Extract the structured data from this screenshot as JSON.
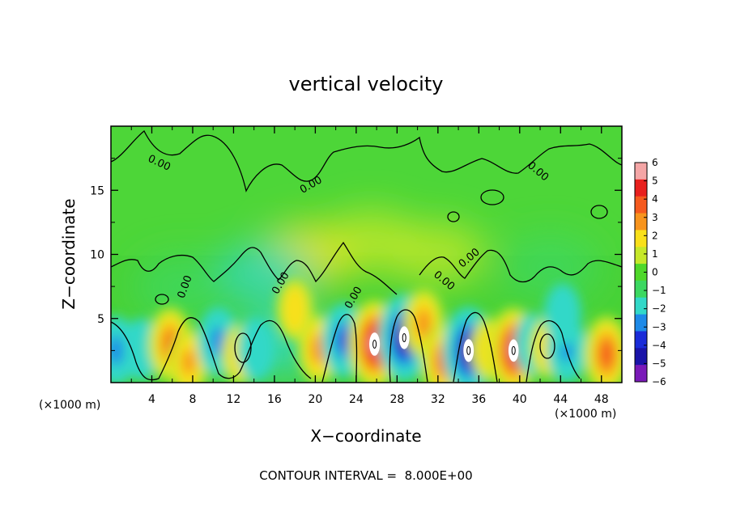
{
  "chart_data": {
    "type": "heatmap",
    "title": "vertical velocity",
    "xlabel": "X−coordinate",
    "ylabel": "Z−coordinate",
    "x_unit_left": "(×1000 m)",
    "x_unit_right": "(×1000 m)",
    "xlim": [
      0,
      50
    ],
    "ylim": [
      0,
      20
    ],
    "x_ticks": [
      4,
      8,
      12,
      16,
      20,
      24,
      28,
      32,
      36,
      40,
      44,
      48
    ],
    "y_ticks": [
      5,
      10,
      15
    ],
    "contour_label": "0.00",
    "colorbar": {
      "range": [
        -6,
        6
      ],
      "ticks": [
        "6",
        "5",
        "4",
        "3",
        "2",
        "1",
        "0",
        "−1",
        "−2",
        "−3",
        "−4",
        "−5",
        "−6"
      ],
      "colors": [
        "#f4a6a6",
        "#e8201e",
        "#f55a1e",
        "#f7941d",
        "#f9e01a",
        "#c6e82a",
        "#4fd82a",
        "#3cd861",
        "#32d8c8",
        "#1d8ae8",
        "#1a2cd8",
        "#1a14a8",
        "#7a1ab8"
      ]
    },
    "footer": "CONTOUR INTERVAL =  8.000E+00",
    "features": [
      {
        "x": 0.5,
        "z": 2.5,
        "w": -3.5
      },
      {
        "x": 3.0,
        "z": 2.6,
        "w": -2.5
      },
      {
        "x": 5.8,
        "z": 3.0,
        "w": 4.2
      },
      {
        "x": 7.6,
        "z": 1.6,
        "w": 3.2
      },
      {
        "x": 10.5,
        "z": 3.2,
        "w": -3.5
      },
      {
        "x": 12.6,
        "z": 2.2,
        "w": 2.2
      },
      {
        "x": 14.2,
        "z": 2.6,
        "w": -2.5
      },
      {
        "x": 16.5,
        "z": 3.0,
        "w": -1.5
      },
      {
        "x": 18.0,
        "z": 5.7,
        "w": 2.5
      },
      {
        "x": 20.3,
        "z": 2.6,
        "w": 3.5
      },
      {
        "x": 22.8,
        "z": 3.3,
        "w": -4.2
      },
      {
        "x": 25.8,
        "z": 3.0,
        "w": 6.4
      },
      {
        "x": 28.7,
        "z": 3.5,
        "w": -6.2
      },
      {
        "x": 30.6,
        "z": 4.6,
        "w": 3.5
      },
      {
        "x": 32.5,
        "z": 1.7,
        "w": 4.2
      },
      {
        "x": 35.0,
        "z": 2.5,
        "w": -6.2
      },
      {
        "x": 37.0,
        "z": 2.6,
        "w": 2.6
      },
      {
        "x": 39.4,
        "z": 2.5,
        "w": 6.0
      },
      {
        "x": 41.3,
        "z": 3.0,
        "w": -2.5
      },
      {
        "x": 42.8,
        "z": 2.8,
        "w": 2.5
      },
      {
        "x": 44.6,
        "z": 2.6,
        "w": -3.2
      },
      {
        "x": 44.2,
        "z": 5.3,
        "w": -2.5
      },
      {
        "x": 48.5,
        "z": 2.2,
        "w": 4.6
      },
      {
        "x": 19.5,
        "z": 10.0,
        "w": 1.6
      },
      {
        "x": 25.5,
        "z": 11.0,
        "w": 1.4
      },
      {
        "x": 32.0,
        "z": 10.0,
        "w": 1.1
      },
      {
        "x": 15.0,
        "z": 8.5,
        "w": -1.6
      },
      {
        "x": 7.0,
        "z": 7.5,
        "w": -1.2
      },
      {
        "x": 43.0,
        "z": 9.0,
        "w": -1.3
      }
    ]
  }
}
